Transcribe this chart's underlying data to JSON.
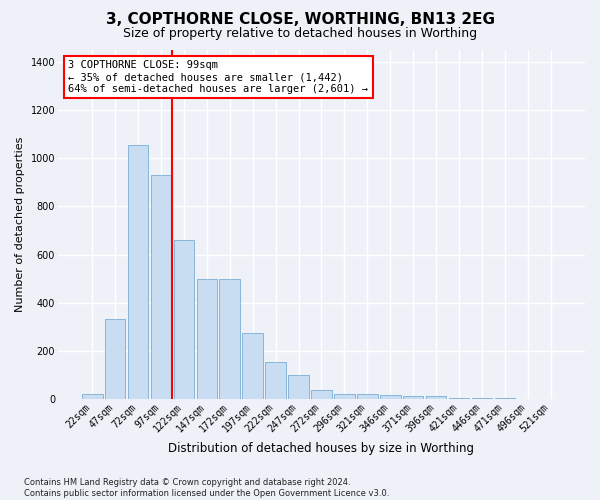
{
  "title": "3, COPTHORNE CLOSE, WORTHING, BN13 2EG",
  "subtitle": "Size of property relative to detached houses in Worthing",
  "xlabel": "Distribution of detached houses by size in Worthing",
  "ylabel": "Number of detached properties",
  "footnote": "Contains HM Land Registry data © Crown copyright and database right 2024.\nContains public sector information licensed under the Open Government Licence v3.0.",
  "categories": [
    "22sqm",
    "47sqm",
    "72sqm",
    "97sqm",
    "122sqm",
    "147sqm",
    "172sqm",
    "197sqm",
    "222sqm",
    "247sqm",
    "272sqm",
    "296sqm",
    "321sqm",
    "346sqm",
    "371sqm",
    "396sqm",
    "421sqm",
    "446sqm",
    "471sqm",
    "496sqm",
    "521sqm"
  ],
  "values": [
    20,
    330,
    1055,
    930,
    660,
    500,
    500,
    275,
    155,
    100,
    35,
    20,
    20,
    18,
    10,
    10,
    5,
    3,
    2,
    1,
    1
  ],
  "bar_color": "#c9ddf2",
  "bar_edge_color": "#7aadd4",
  "vline_x_index": 3,
  "vline_color": "red",
  "annotation_text": "3 COPTHORNE CLOSE: 99sqm\n← 35% of detached houses are smaller (1,442)\n64% of semi-detached houses are larger (2,601) →",
  "annotation_box_color": "white",
  "annotation_box_edge": "red",
  "ylim": [
    0,
    1450
  ],
  "yticks": [
    0,
    200,
    400,
    600,
    800,
    1000,
    1200,
    1400
  ],
  "background_color": "#eef2f8",
  "grid_color": "#ffffff",
  "title_fontsize": 11,
  "subtitle_fontsize": 9,
  "xlabel_fontsize": 8.5,
  "ylabel_fontsize": 8,
  "tick_fontsize": 7,
  "annotation_fontsize": 7.5,
  "footnote_fontsize": 6
}
